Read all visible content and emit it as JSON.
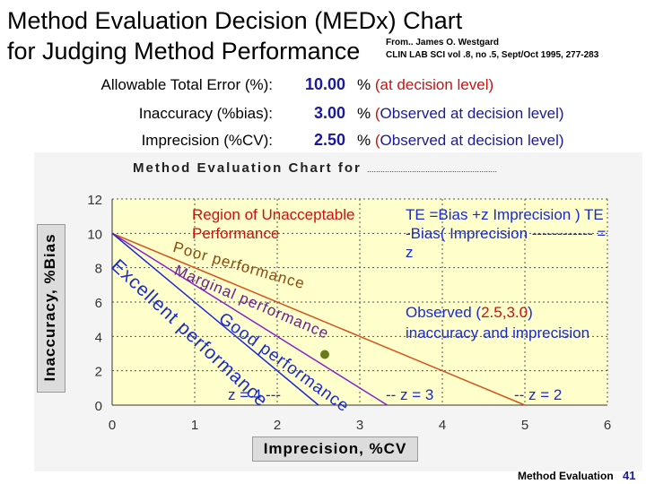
{
  "header": {
    "title_line1": "Method Evaluation Decision (MEDx) Chart",
    "title_line2": "for Judging Method Performance",
    "ref_line1": "From.. James O. Westgard",
    "ref_line2": "CLIN LAB SCI vol .8, no .5, Sept/Oct 1995, 277-283"
  },
  "params": [
    {
      "label": "Allowable Total  Error (%):",
      "value": "10.00",
      "unit": "%",
      "note_color_part": "(at decision level)",
      "note_plain": ""
    },
    {
      "label": "Inaccuracy (%bias):",
      "value": "3.00",
      "unit": "%",
      "note_color_part": "(",
      "note_plain": "Observed at decision level)"
    },
    {
      "label": "Imprecision (%CV):",
      "value": "2.50",
      "unit": "%",
      "note_color_part": "(",
      "note_plain": "Observed at decision level)"
    }
  ],
  "chart_data": {
    "type": "line",
    "title": "Method Evaluation Chart for",
    "title_blank": "..........................................................",
    "xlabel": "Imprecision, %CV",
    "ylabel": "Inaccuracy, %Bias",
    "xlim": [
      0,
      6
    ],
    "ylim": [
      0,
      12
    ],
    "xticks": [
      "0",
      "1",
      "2",
      "3",
      "4",
      "5",
      "6"
    ],
    "yticks": [
      "0",
      "2",
      "4",
      "6",
      "8",
      "10",
      "12"
    ],
    "series": [
      {
        "name": "z = 2",
        "color": "#d4541e",
        "x": [
          0,
          5
        ],
        "y": [
          10,
          0
        ]
      },
      {
        "name": "z = 3",
        "color": "#8a20c8",
        "x": [
          0,
          3.333
        ],
        "y": [
          10,
          0
        ]
      },
      {
        "name": "z = 4",
        "color": "#1a2ad0",
        "x": [
          0,
          2.5
        ],
        "y": [
          10,
          0
        ]
      }
    ],
    "observed_point": {
      "x": 2.5,
      "y": 3.0,
      "color": "#6b7a1a"
    },
    "region_labels": {
      "unacceptable": "Region of Unacceptable Performance",
      "poor": "Poor performance",
      "marginal": "Marginal performance",
      "good": "Good performance",
      "excellent": "Excellent performance"
    },
    "line_labels": {
      "z4": "z = 4 ---",
      "z3": "-- z = 3",
      "z2": "-- z = 2"
    },
    "annotations": {
      "formula": "TE  =Bias  +z Imprecision )                    TE  -Bias( Imprecision ------------ =                                        z",
      "observed_line1": "Observed (",
      "observed_coords": "2.5,3.0",
      "observed_line1_end": ")",
      "observed_line2": "inaccuracy and imprecision"
    }
  },
  "footer": {
    "label": "Method Evaluation",
    "page": "41"
  }
}
